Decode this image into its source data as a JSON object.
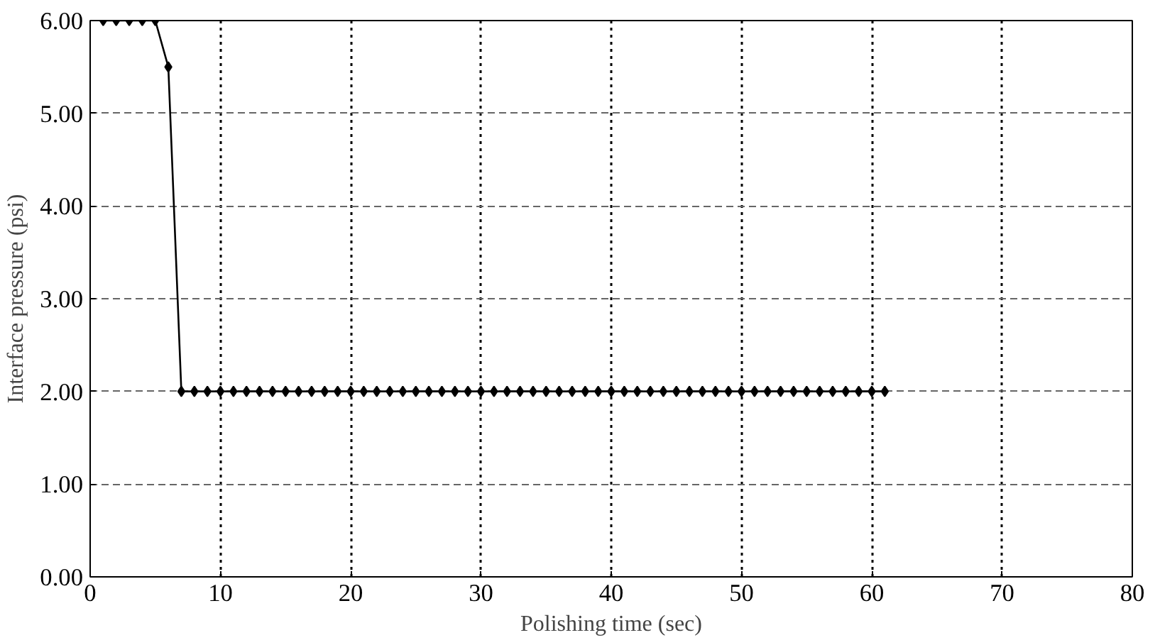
{
  "chart_data": {
    "type": "line",
    "xlabel": "Polishing time (sec)",
    "ylabel": "Interface pressure (psi)",
    "x": [
      1,
      2,
      3,
      4,
      5,
      6,
      7,
      8,
      9,
      10,
      11,
      12,
      13,
      14,
      15,
      16,
      17,
      18,
      19,
      20,
      21,
      22,
      23,
      24,
      25,
      26,
      27,
      28,
      29,
      30,
      31,
      32,
      33,
      34,
      35,
      36,
      37,
      38,
      39,
      40,
      41,
      42,
      43,
      44,
      45,
      46,
      47,
      48,
      49,
      50,
      51,
      52,
      53,
      54,
      55,
      56,
      57,
      58,
      59,
      60,
      61
    ],
    "series": [
      {
        "color": "#000000",
        "values": [
          6,
          6,
          6,
          6,
          6,
          5.5,
          2,
          2,
          2,
          2,
          2,
          2,
          2,
          2,
          2,
          2,
          2,
          2,
          2,
          2,
          2,
          2,
          2,
          2,
          2,
          2,
          2,
          2,
          2,
          2,
          2,
          2,
          2,
          2,
          2,
          2,
          2,
          2,
          2,
          2,
          2,
          2,
          2,
          2,
          2,
          2,
          2,
          2,
          2,
          2,
          2,
          2,
          2,
          2,
          2,
          2,
          2,
          2,
          2,
          2,
          2
        ]
      }
    ],
    "xlim": [
      0,
      80
    ],
    "xticks": [
      0,
      10,
      20,
      30,
      40,
      50,
      60,
      70,
      80
    ],
    "ylim": [
      0,
      6
    ],
    "yticks": [
      {
        "value": 0,
        "label": "0.00"
      },
      {
        "value": 1,
        "label": "1.00"
      },
      {
        "value": 2,
        "label": "2.00"
      },
      {
        "value": 3,
        "label": "3.00"
      },
      {
        "value": 4,
        "label": "4.00"
      },
      {
        "value": 5,
        "label": "5.00"
      },
      {
        "value": 6,
        "label": "6.00"
      }
    ],
    "grid": true,
    "marker": "diamond",
    "line_style": "solid"
  }
}
